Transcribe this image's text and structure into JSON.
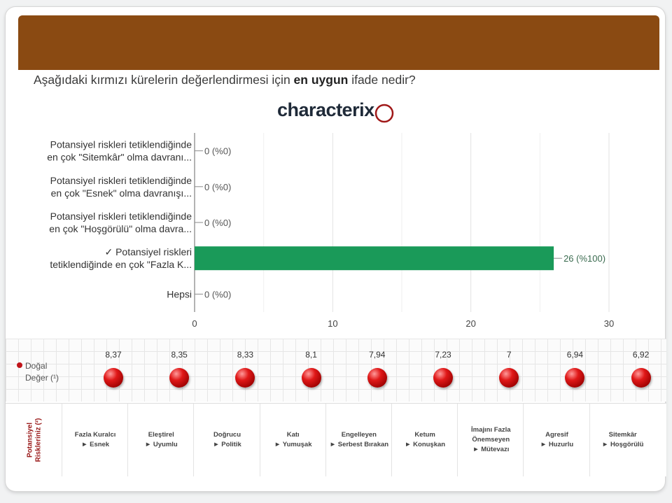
{
  "question": {
    "before": "Aşağıdaki kırmızı kürelerin değerlendirmesi için ",
    "bold": "en uygun",
    "after": " ifade nedir?"
  },
  "logo": "characterix",
  "chart_data": {
    "type": "bar",
    "orientation": "horizontal",
    "categories": [
      [
        "Potansiyel riskleri tetiklendiğinde",
        "en çok \"Sitemkâr\" olma davranı..."
      ],
      [
        "Potansiyel riskleri tetiklendiğinde",
        "en çok \"Esnek\" olma davranışı..."
      ],
      [
        "Potansiyel riskleri tetiklendiğinde",
        "en çok \"Hoşgörülü\" olma davra..."
      ],
      [
        "✓ Potansiyel riskleri",
        "tetiklendiğinde en çok \"Fazla K..."
      ],
      [
        "Hepsi"
      ]
    ],
    "values": [
      0,
      0,
      0,
      26,
      0
    ],
    "value_labels": [
      "0 (%0)",
      "0 (%0)",
      "0 (%0)",
      "26 (%100)",
      "0 (%0)"
    ],
    "xlim": [
      0,
      30
    ],
    "xticks": [
      "0",
      "10",
      "20",
      "30"
    ],
    "bar_color": "#1a9a59",
    "grid": true
  },
  "dot_row": {
    "label": "Doğal Değer (¹)",
    "values": [
      "8,37",
      "8,35",
      "8,33",
      "8,1",
      "7,94",
      "7,23",
      "7",
      "6,94",
      "6,92"
    ]
  },
  "risk_row": {
    "label": [
      "Potansiyel",
      "Riskleriniz (²)"
    ],
    "items": [
      [
        "Fazla Kuralcı",
        "► Esnek"
      ],
      [
        "Eleştirel",
        "► Uyumlu"
      ],
      [
        "Doğrucu",
        "► Politik"
      ],
      [
        "Katı",
        "► Yumuşak"
      ],
      [
        "Engelleyen",
        "► Serbest Bırakan"
      ],
      [
        "Ketum",
        "► Konuşkan"
      ],
      [
        "İmajını Fazla",
        "Önemseyen",
        "► Mütevazı"
      ],
      [
        "Agresif",
        "► Huzurlu"
      ],
      [
        "Sitemkâr",
        "► Hoşgörülü"
      ]
    ]
  },
  "colors": {
    "banner": "#8a4a12",
    "ball": "#d01010",
    "accent": "#1a9a59"
  }
}
